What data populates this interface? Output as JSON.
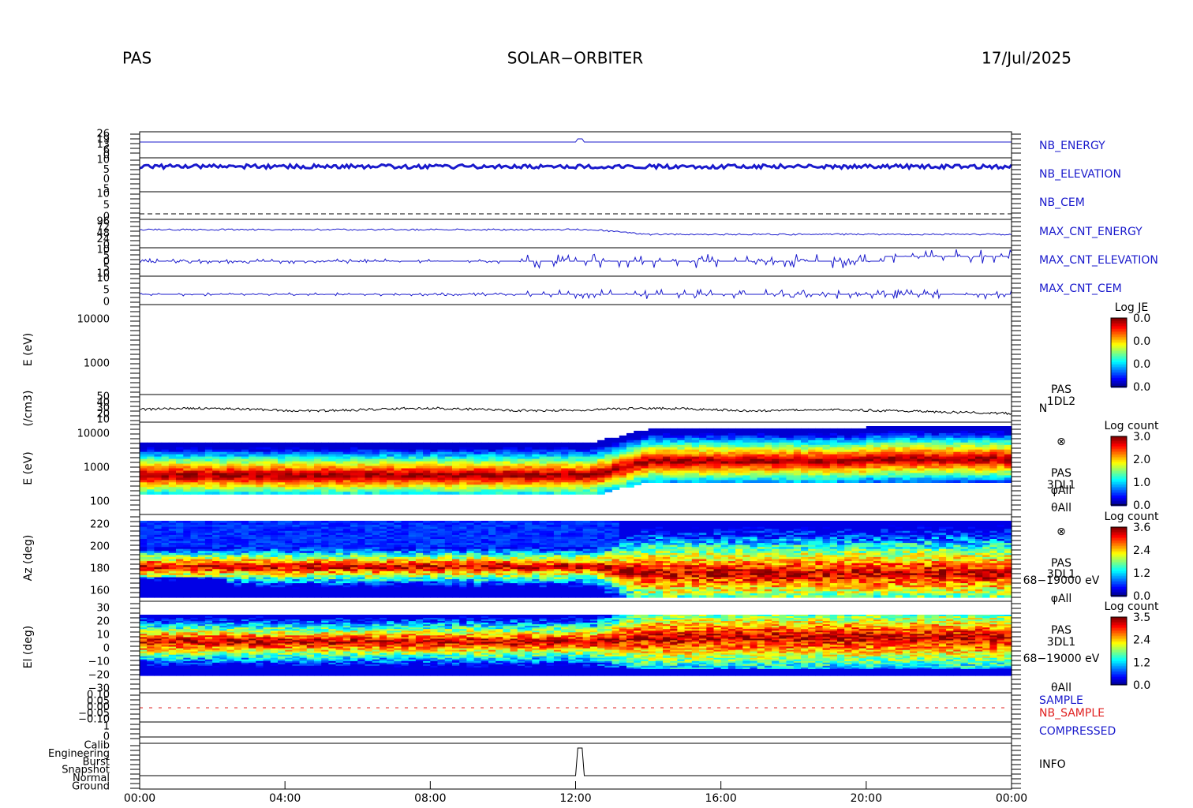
{
  "header": {
    "instrument": "PAS",
    "mission": "SOLAR−ORBITER",
    "date": "17/Jul/2025"
  },
  "panels": [
    {
      "ticks": [
        "26",
        "19",
        "13",
        "6",
        "0"
      ],
      "side": [
        "NB_ENERGY"
      ]
    },
    {
      "ticks": [
        "10",
        "5",
        "0",
        "5"
      ],
      "side": [
        "NB_ELEVATION"
      ]
    },
    {
      "ticks": [
        "10",
        "5",
        "0"
      ],
      "side": [
        "NB_CEM"
      ]
    },
    {
      "ticks": [
        "96",
        "72",
        "48",
        "24",
        "0"
      ],
      "side": [
        "MAX_CNT_ENERGY"
      ]
    },
    {
      "ticks": [
        "10",
        "5",
        "0",
        "5",
        "10"
      ],
      "side": [
        "MAX_CNT_ELEVATION"
      ]
    },
    {
      "ticks": [
        "10",
        "5",
        "0"
      ],
      "side": [
        "MAX_CNT_CEM"
      ]
    },
    {
      "ylabel": "E (eV)",
      "ticks": [
        "10000",
        "1000"
      ],
      "side": []
    },
    {
      "ylabel": "(/cm3)",
      "ticks": [
        "50",
        "40",
        "30",
        "20",
        "10"
      ],
      "side": [
        "PAS",
        "1DL2",
        "N"
      ]
    },
    {
      "ylabel": "E (eV)",
      "ticks": [
        "10000",
        "1000",
        "100"
      ],
      "side": [
        "⊗",
        "PAS",
        "3DL1",
        "φAll",
        "θAll"
      ]
    },
    {
      "ylabel": "Az (deg)",
      "ticks": [
        "220",
        "200",
        "180",
        "160"
      ],
      "side": [
        "⊗",
        "PAS",
        "3DL1",
        "68−19000 eV",
        "φAll"
      ]
    },
    {
      "ylabel": "El (deg)",
      "ticks": [
        "30",
        "20",
        "10",
        "0",
        "−10",
        "−20",
        "−30"
      ],
      "side": [
        "PAS",
        "3DL1",
        "68−19000 eV",
        "θAll"
      ]
    },
    {
      "ticks": [
        "0.10",
        "0.05",
        "0.00",
        "−0.05",
        "−0.10"
      ],
      "side": [
        "SAMPLE",
        "NB_SAMPLE"
      ]
    },
    {
      "ticks": [
        "1",
        "0"
      ],
      "side": [
        "COMPRESSED"
      ]
    },
    {
      "ticks": [
        "Calib",
        "Engineering",
        "Burst",
        "Snapshot",
        "Normal",
        "Ground"
      ],
      "side": [
        "INFO"
      ]
    }
  ],
  "colorbars": [
    {
      "title": "Log JE",
      "ticks": [
        "0.0",
        "0.0",
        "0.0",
        "0.0"
      ]
    },
    {
      "title": "Log count",
      "ticks": [
        "3.0",
        "2.0",
        "1.0",
        "0.0"
      ]
    },
    {
      "title": "Log count",
      "ticks": [
        "3.6",
        "2.4",
        "1.2",
        "0.0"
      ]
    },
    {
      "title": "Log count",
      "ticks": [
        "3.5",
        "2.4",
        "1.2",
        "0.0"
      ]
    }
  ],
  "x_ticks": [
    "00:00",
    "04:00",
    "08:00",
    "12:00",
    "16:00",
    "20:00",
    "00:00"
  ]
}
